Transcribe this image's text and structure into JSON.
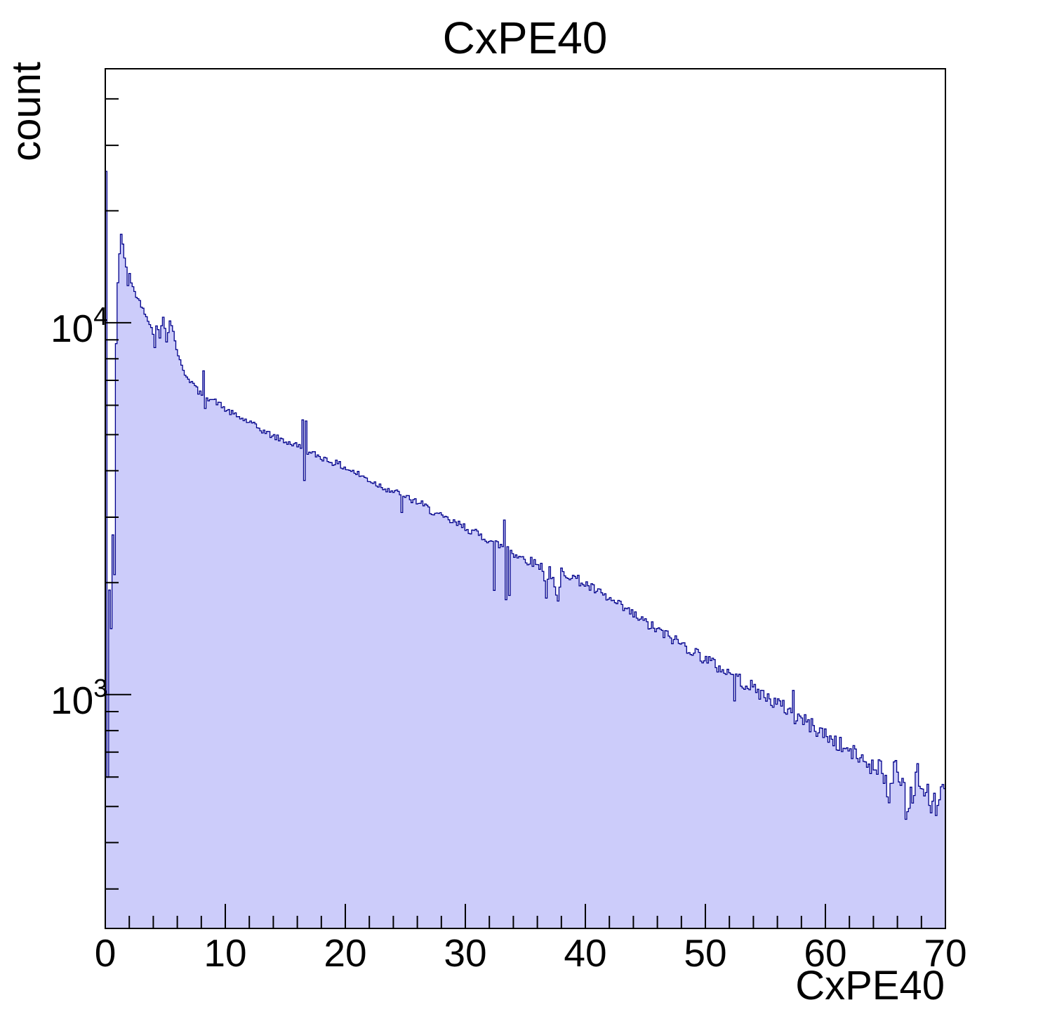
{
  "chart_data": {
    "type": "bar",
    "subtype": "step-histogram-filled-log-y",
    "title": "CxPE40",
    "xlabel": "CxPE40",
    "ylabel": "count",
    "x_range": [
      0,
      70
    ],
    "y_scale": "log",
    "y_range": [
      235,
      48200
    ],
    "grid": false,
    "legend": false,
    "x_major_ticks": [
      0,
      10,
      20,
      30,
      40,
      50,
      60,
      70
    ],
    "x_minor_tick_step": 2,
    "y_major_ticks": [
      1000,
      10000
    ],
    "y_minor_ticks_per_decade": [
      2,
      3,
      4,
      5,
      6,
      7,
      8,
      9
    ],
    "n_bins": 500,
    "bin_width": 0.14,
    "style": {
      "fill_color": "#ccccfa",
      "line_color": "#00008b",
      "axis_color": "#000000",
      "text_color": "#000000"
    },
    "noise": {
      "seed": 42,
      "coeff": 1.4,
      "max_rel": 0.1
    },
    "trend_points": [
      [
        0.07,
        25500
      ],
      [
        0.21,
        600
      ],
      [
        0.35,
        1900
      ],
      [
        0.49,
        1500
      ],
      [
        0.63,
        2700
      ],
      [
        0.77,
        2100
      ],
      [
        0.91,
        8800
      ],
      [
        1.05,
        12800
      ],
      [
        1.19,
        15300
      ],
      [
        1.33,
        17300
      ],
      [
        1.47,
        16300
      ],
      [
        1.61,
        14900
      ],
      [
        1.75,
        14100
      ],
      [
        1.89,
        12600
      ],
      [
        2.03,
        13600
      ],
      [
        2.17,
        12800
      ],
      [
        2.45,
        12100
      ],
      [
        2.8,
        11500
      ],
      [
        3.1,
        11000
      ],
      [
        3.4,
        10500
      ],
      [
        3.7,
        10000
      ],
      [
        3.99,
        9300
      ],
      [
        4.13,
        8600
      ],
      [
        4.27,
        9900
      ],
      [
        4.55,
        9100
      ],
      [
        4.83,
        10400
      ],
      [
        5.11,
        9000
      ],
      [
        5.39,
        10100
      ],
      [
        5.67,
        9500
      ],
      [
        5.81,
        8900
      ],
      [
        6.09,
        8200
      ],
      [
        6.37,
        7600
      ],
      [
        6.65,
        7300
      ],
      [
        7.0,
        7050
      ],
      [
        7.4,
        6800
      ],
      [
        7.8,
        6500
      ],
      [
        8.05,
        6400
      ],
      [
        8.19,
        7400
      ],
      [
        8.33,
        5900
      ],
      [
        8.47,
        6300
      ],
      [
        9.0,
        6200
      ],
      [
        9.5,
        6050
      ],
      [
        10.0,
        5850
      ],
      [
        11.0,
        5600
      ],
      [
        12.0,
        5400
      ],
      [
        13.0,
        5150
      ],
      [
        14.0,
        4950
      ],
      [
        15.0,
        4800
      ],
      [
        16.17,
        4650
      ],
      [
        16.31,
        4600
      ],
      [
        16.45,
        5500
      ],
      [
        16.59,
        3750
      ],
      [
        16.73,
        5450
      ],
      [
        16.87,
        4450
      ],
      [
        17.5,
        4420
      ],
      [
        18.5,
        4280
      ],
      [
        19.5,
        4150
      ],
      [
        20.5,
        4000
      ],
      [
        21.5,
        3850
      ],
      [
        22.5,
        3700
      ],
      [
        23.5,
        3580
      ],
      [
        24.57,
        3450
      ],
      [
        24.71,
        3100
      ],
      [
        24.85,
        3400
      ],
      [
        26.0,
        3300
      ],
      [
        27.0,
        3150
      ],
      [
        28.0,
        3000
      ],
      [
        29.0,
        2900
      ],
      [
        30.0,
        2820
      ],
      [
        31.0,
        2700
      ],
      [
        32.13,
        2600
      ],
      [
        32.27,
        2580
      ],
      [
        32.41,
        1900
      ],
      [
        32.55,
        2550
      ],
      [
        33.11,
        2500
      ],
      [
        33.25,
        2950
      ],
      [
        33.39,
        1800
      ],
      [
        33.53,
        2500
      ],
      [
        33.67,
        1850
      ],
      [
        33.81,
        2450
      ],
      [
        33.95,
        2400
      ],
      [
        34.5,
        2350
      ],
      [
        35.5,
        2280
      ],
      [
        36.5,
        2200
      ],
      [
        36.75,
        1850
      ],
      [
        37.03,
        2200
      ],
      [
        37.73,
        1750
      ],
      [
        38.01,
        2150
      ],
      [
        39.0,
        2070
      ],
      [
        40.0,
        1980
      ],
      [
        41.0,
        1890
      ],
      [
        42.0,
        1800
      ],
      [
        43.0,
        1720
      ],
      [
        44.0,
        1640
      ],
      [
        45.0,
        1560
      ],
      [
        46.0,
        1490
      ],
      [
        47.0,
        1430
      ],
      [
        48.0,
        1370
      ],
      [
        49.0,
        1310
      ],
      [
        50.0,
        1250
      ],
      [
        51.0,
        1190
      ],
      [
        52.29,
        1130
      ],
      [
        52.43,
        970
      ],
      [
        52.57,
        1110
      ],
      [
        54.0,
        1040
      ],
      [
        55.0,
        990
      ],
      [
        56.0,
        945
      ],
      [
        57.19,
        900
      ],
      [
        57.33,
        1020
      ],
      [
        57.47,
        840
      ],
      [
        57.61,
        880
      ],
      [
        58.5,
        840
      ],
      [
        59.5,
        800
      ],
      [
        60.5,
        760
      ],
      [
        61.5,
        720
      ],
      [
        62.5,
        690
      ],
      [
        63.5,
        655
      ],
      [
        64.41,
        625
      ],
      [
        64.55,
        730
      ],
      [
        64.69,
        600
      ],
      [
        64.97,
        610
      ],
      [
        65.25,
        480
      ],
      [
        65.53,
        590
      ],
      [
        65.81,
        680
      ],
      [
        66.23,
        560
      ],
      [
        66.51,
        615
      ],
      [
        66.79,
        450
      ],
      [
        67.07,
        560
      ],
      [
        67.35,
        520
      ],
      [
        67.63,
        640
      ],
      [
        67.91,
        560
      ],
      [
        68.19,
        520
      ],
      [
        68.47,
        600
      ],
      [
        68.75,
        470
      ],
      [
        69.03,
        540
      ],
      [
        69.31,
        480
      ],
      [
        69.59,
        530
      ],
      [
        69.87,
        560
      ]
    ]
  }
}
